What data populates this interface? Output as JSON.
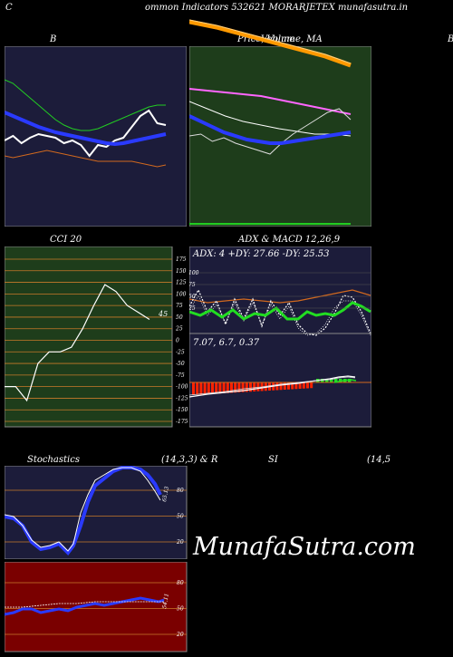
{
  "header": {
    "left_letter": "C",
    "title": "ommon  Indicators 532621 MORARJETEX  munafasutra.in"
  },
  "colors": {
    "bg": "#000000",
    "panel_navy": "#1c1c3a",
    "panel_green": "#1e3d1b",
    "panel_red": "#7a0000",
    "grid_orange": "#c87a2a",
    "blue_line": "#2a3aff",
    "green_line": "#22cc22",
    "orange_line": "#d2691e",
    "white_line": "#ffffff"
  },
  "chart_data": [
    {
      "id": "bollinger",
      "type": "line",
      "title": "B",
      "series": [
        {
          "color": "#ffffff",
          "values": [
            155,
            150,
            158,
            152,
            148,
            150,
            152,
            158,
            155,
            160,
            172,
            160,
            162,
            155,
            152,
            140,
            128,
            122,
            136,
            138
          ]
        },
        {
          "color": "#2a3aff",
          "values": [
            124,
            128,
            132,
            136,
            140,
            143,
            146,
            148,
            150,
            152,
            154,
            156,
            158,
            159,
            158,
            156,
            154,
            152,
            150,
            148
          ]
        },
        {
          "color": "#22cc22",
          "values": [
            88,
            92,
            100,
            108,
            116,
            124,
            132,
            138,
            142,
            144,
            144,
            142,
            138,
            134,
            130,
            126,
            122,
            118,
            116,
            116
          ]
        },
        {
          "color": "#d2691e",
          "values": [
            172,
            174,
            172,
            170,
            168,
            166,
            168,
            170,
            172,
            174,
            176,
            178,
            178,
            178,
            178,
            178,
            180,
            182,
            184,
            182
          ]
        }
      ]
    },
    {
      "id": "price-volume-ma",
      "type": "line",
      "title": "Price,  Volume,  MA",
      "title_overlay": "Volume",
      "series": [
        {
          "color": "#ff9900",
          "values": [
            26,
            30,
            36,
            42,
            48,
            54,
            60,
            66,
            72,
            78
          ]
        },
        {
          "color": "#ff66ff",
          "values": [
            98,
            100,
            102,
            104,
            106,
            110,
            114,
            118,
            122,
            126
          ]
        },
        {
          "color": "#ffffff",
          "values": [
            112,
            120,
            128,
            134,
            138,
            142,
            145,
            148,
            148,
            150
          ]
        },
        {
          "color": "#dddddd",
          "values": [
            150,
            148,
            156,
            152,
            158,
            162,
            166,
            170,
            158,
            148,
            140,
            132,
            124,
            120,
            132
          ]
        },
        {
          "color": "#2a3aff",
          "values": [
            128,
            134,
            140,
            146,
            150,
            154,
            156,
            158,
            158,
            156,
            154,
            152,
            150,
            148,
            146
          ]
        }
      ]
    },
    {
      "id": "cci",
      "type": "line",
      "title": "CCI 20",
      "current_value_label": "45",
      "y_ticks": [
        "175",
        "150",
        "125",
        "100",
        "75",
        "50",
        "25",
        "0",
        "-25",
        "-50",
        "-75",
        "-100",
        "-125",
        "-150",
        "-175"
      ],
      "values": [
        -100,
        -100,
        -130,
        -50,
        -25,
        -25,
        -15,
        25,
        75,
        120,
        105,
        75,
        60,
        45
      ]
    },
    {
      "id": "adx",
      "type": "line",
      "title": "ADX  & MACD 12,26,9",
      "readout": "ADX: 4   +DY: 27.66  -DY: 25.53",
      "y_ticks": [
        "100",
        "75",
        "50",
        "25"
      ]
    },
    {
      "id": "macd",
      "type": "bar",
      "readout": "7.07,  6.7,  0.37"
    },
    {
      "id": "stochastics",
      "type": "line",
      "title_left": "Stochastics",
      "title_right": "(14,3,3) & R",
      "current_value_label": "65.13",
      "y_ticks": [
        "80",
        "50",
        "20"
      ]
    },
    {
      "id": "rsi",
      "type": "line",
      "title_left": "SI",
      "title_right": "(14,5",
      "current_value_label": "54.11",
      "y_ticks": [
        "80",
        "50",
        "20"
      ]
    }
  ],
  "watermark": "MunafaSutra.com"
}
